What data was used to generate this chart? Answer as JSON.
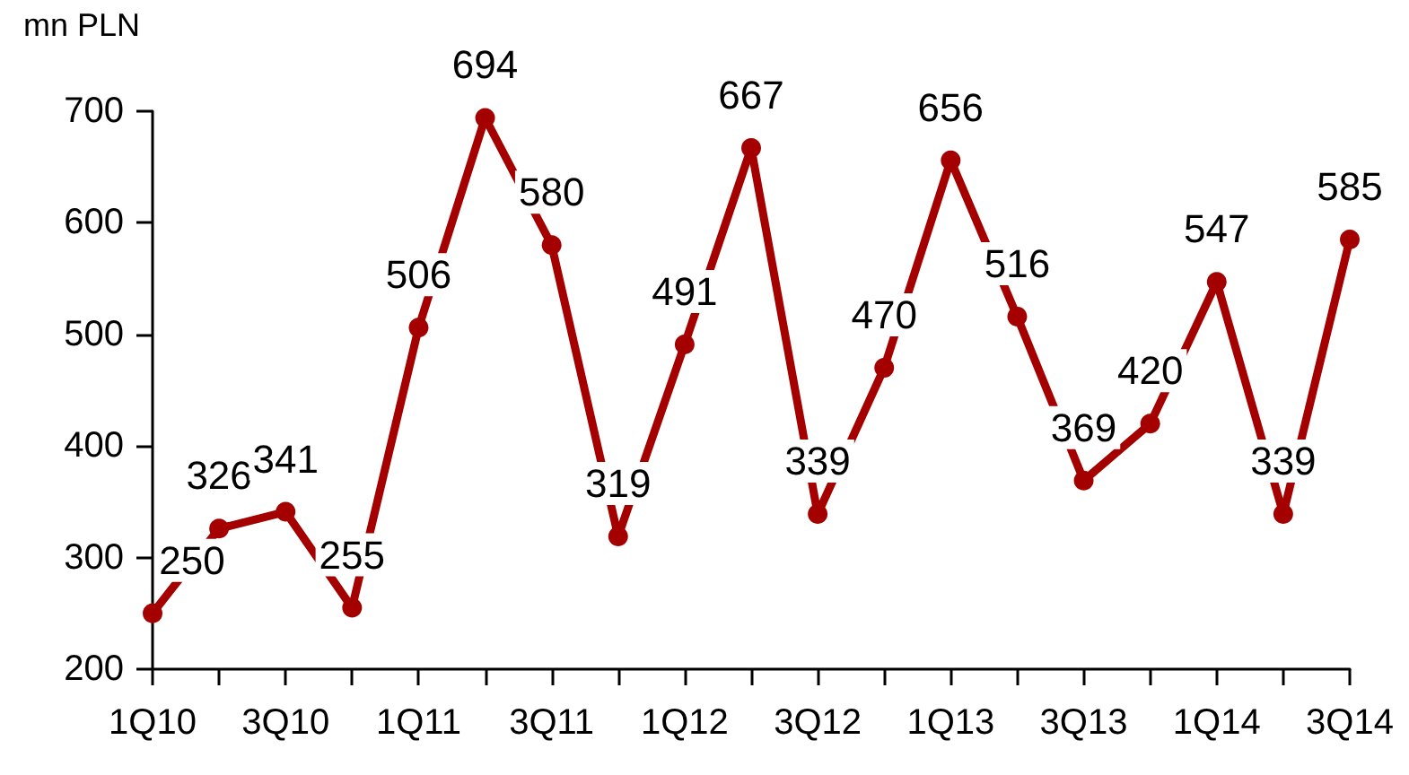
{
  "chart_data": {
    "type": "line",
    "ylabel": "mn PLN",
    "categories": [
      "1Q10",
      null,
      "3Q10",
      null,
      "1Q11",
      null,
      "3Q11",
      null,
      "1Q12",
      null,
      "3Q12",
      null,
      "1Q13",
      null,
      "3Q13",
      null,
      "1Q14",
      null,
      "3Q14"
    ],
    "series": [
      {
        "color": "#a50000",
        "values": [
          250,
          326,
          341,
          255,
          506,
          694,
          580,
          319,
          491,
          667,
          339,
          470,
          656,
          516,
          369,
          420,
          547,
          339,
          585
        ]
      }
    ],
    "ylim": [
      200,
      700
    ],
    "yticks": [
      200,
      300,
      400,
      500,
      600,
      700
    ],
    "data_labels": true,
    "marker": "circle",
    "line_style": "solid",
    "grid": false
  }
}
